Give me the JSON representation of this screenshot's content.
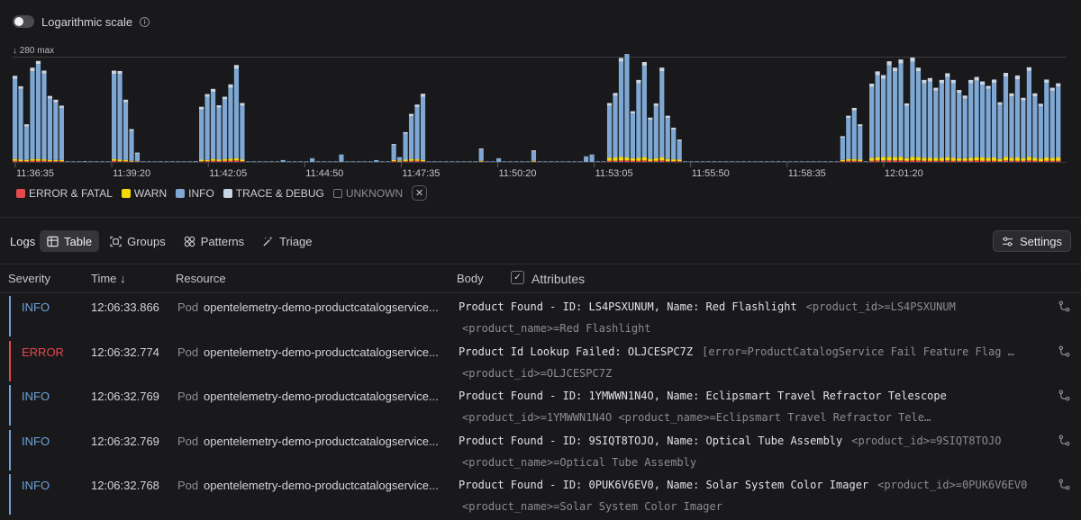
{
  "toolbar": {
    "log_scale_label": "Logarithmic scale"
  },
  "chart_data": {
    "type": "bar",
    "max_label": "280 max",
    "ymax": 280,
    "tick_labels": [
      "11:36:35",
      "11:39:20",
      "11:42:05",
      "11:44:50",
      "11:47:35",
      "11:50:20",
      "11:53:05",
      "11:55:50",
      "11:58:35",
      "12:01:20"
    ],
    "series": [
      {
        "name": "ERROR & FATAL",
        "color": "#e5484d"
      },
      {
        "name": "WARN",
        "color": "#f5d90a"
      },
      {
        "name": "INFO",
        "color": "#7ea8d3"
      },
      {
        "name": "TRACE & DEBUG",
        "color": "#c9d5e3"
      },
      {
        "name": "UNKNOWN",
        "color": "#77777d"
      }
    ],
    "info": [
      215,
      190,
      90,
      235,
      255,
      230,
      165,
      155,
      140,
      0,
      0,
      0,
      2,
      0,
      0,
      0,
      0,
      228,
      230,
      155,
      80,
      20,
      0,
      0,
      0,
      0,
      0,
      0,
      0,
      0,
      0,
      2,
      135,
      170,
      180,
      140,
      160,
      190,
      240,
      145,
      0,
      0,
      0,
      0,
      0,
      0,
      5,
      0,
      0,
      0,
      0,
      10,
      0,
      0,
      0,
      0,
      20,
      0,
      0,
      0,
      0,
      0,
      5,
      0,
      0,
      40,
      10,
      70,
      115,
      140,
      170,
      0,
      0,
      0,
      0,
      0,
      0,
      0,
      0,
      0,
      30,
      0,
      0,
      10,
      0,
      0,
      0,
      0,
      0,
      25,
      0,
      0,
      0,
      0,
      0,
      0,
      0,
      0,
      15,
      20,
      0,
      0,
      140,
      165,
      255,
      280,
      120,
      200,
      245,
      105,
      140,
      230,
      110,
      80,
      50,
      0,
      0,
      0,
      0,
      0,
      0,
      0,
      0,
      0,
      0,
      0,
      0,
      0,
      0,
      0,
      0,
      0,
      0,
      0,
      0,
      0,
      0,
      0,
      0,
      0,
      0,
      0,
      60,
      110,
      130,
      90,
      0,
      190,
      220,
      210,
      245,
      230,
      250,
      140,
      255,
      230,
      200,
      205,
      180,
      200,
      215,
      200,
      175,
      160,
      200,
      205,
      195,
      185,
      200,
      145,
      215,
      165,
      210,
      155,
      230,
      165,
      140,
      200,
      180,
      190
    ],
    "trace": [
      8,
      7,
      6,
      10,
      8,
      8,
      7,
      7,
      6,
      0,
      0,
      0,
      0,
      0,
      0,
      0,
      0,
      9,
      8,
      7,
      5,
      3,
      0,
      0,
      0,
      0,
      0,
      0,
      0,
      0,
      0,
      0,
      7,
      7,
      8,
      6,
      7,
      9,
      10,
      7,
      0,
      0,
      0,
      0,
      0,
      0,
      0,
      0,
      0,
      0,
      0,
      0,
      0,
      0,
      0,
      0,
      0,
      0,
      0,
      0,
      0,
      0,
      0,
      0,
      0,
      3,
      0,
      4,
      6,
      7,
      8,
      0,
      0,
      0,
      0,
      0,
      0,
      0,
      0,
      0,
      3,
      0,
      0,
      0,
      0,
      0,
      0,
      0,
      0,
      3,
      0,
      0,
      0,
      0,
      0,
      0,
      0,
      0,
      0,
      0,
      0,
      0,
      7,
      8,
      10,
      11,
      6,
      9,
      10,
      6,
      7,
      10,
      6,
      5,
      4,
      0,
      0,
      0,
      0,
      0,
      0,
      0,
      0,
      0,
      0,
      0,
      0,
      0,
      0,
      0,
      0,
      0,
      0,
      0,
      0,
      0,
      0,
      0,
      0,
      0,
      0,
      0,
      4,
      6,
      7,
      5,
      0,
      9,
      10,
      10,
      11,
      10,
      11,
      7,
      11,
      10,
      9,
      9,
      8,
      9,
      10,
      9,
      8,
      8,
      9,
      10,
      9,
      8,
      9,
      7,
      10,
      8,
      10,
      7,
      10,
      8,
      7,
      9,
      8,
      9
    ],
    "warn": [
      5,
      4,
      3,
      5,
      5,
      4,
      3,
      3,
      3,
      0,
      0,
      0,
      0,
      0,
      0,
      0,
      0,
      5,
      4,
      3,
      2,
      1,
      0,
      0,
      0,
      0,
      0,
      0,
      0,
      0,
      0,
      0,
      4,
      3,
      5,
      4,
      5,
      6,
      6,
      4,
      0,
      0,
      0,
      0,
      0,
      0,
      0,
      0,
      0,
      0,
      0,
      0,
      0,
      0,
      0,
      0,
      0,
      0,
      0,
      0,
      0,
      0,
      0,
      0,
      0,
      3,
      2,
      4,
      5,
      4,
      3,
      0,
      0,
      0,
      0,
      0,
      0,
      0,
      0,
      0,
      2,
      0,
      0,
      0,
      0,
      0,
      0,
      0,
      0,
      2,
      0,
      0,
      0,
      0,
      0,
      0,
      0,
      0,
      0,
      0,
      0,
      0,
      8,
      9,
      10,
      8,
      7,
      8,
      9,
      6,
      7,
      9,
      6,
      5,
      4,
      0,
      0,
      0,
      0,
      0,
      0,
      0,
      0,
      0,
      0,
      0,
      0,
      0,
      0,
      0,
      0,
      0,
      0,
      0,
      0,
      0,
      0,
      0,
      0,
      0,
      0,
      0,
      3,
      5,
      5,
      4,
      0,
      8,
      9,
      9,
      10,
      9,
      10,
      7,
      10,
      9,
      8,
      8,
      8,
      8,
      9,
      8,
      7,
      7,
      8,
      9,
      9,
      8,
      9,
      6,
      10,
      8,
      9,
      7,
      10,
      8,
      7,
      9,
      8,
      9
    ],
    "error": [
      3,
      2,
      2,
      3,
      3,
      3,
      2,
      2,
      2,
      0,
      0,
      0,
      0,
      0,
      0,
      0,
      0,
      3,
      2,
      2,
      1,
      1,
      0,
      0,
      0,
      0,
      0,
      0,
      0,
      0,
      0,
      0,
      2,
      2,
      3,
      2,
      3,
      3,
      4,
      2,
      0,
      0,
      0,
      0,
      0,
      0,
      0,
      0,
      0,
      0,
      0,
      0,
      0,
      0,
      0,
      0,
      0,
      0,
      0,
      0,
      0,
      0,
      0,
      0,
      0,
      2,
      1,
      2,
      3,
      3,
      2,
      0,
      0,
      0,
      0,
      0,
      0,
      0,
      0,
      0,
      1,
      0,
      0,
      0,
      0,
      0,
      0,
      0,
      0,
      1,
      0,
      0,
      0,
      0,
      0,
      0,
      0,
      0,
      0,
      0,
      0,
      0,
      3,
      3,
      4,
      4,
      3,
      3,
      4,
      2,
      3,
      4,
      2,
      2,
      2,
      0,
      0,
      0,
      0,
      0,
      0,
      0,
      0,
      0,
      0,
      0,
      0,
      0,
      0,
      0,
      0,
      0,
      0,
      0,
      0,
      0,
      0,
      0,
      0,
      0,
      0,
      0,
      2,
      3,
      3,
      2,
      0,
      3,
      4,
      4,
      4,
      4,
      4,
      3,
      4,
      4,
      3,
      3,
      3,
      3,
      4,
      3,
      3,
      3,
      3,
      4,
      3,
      3,
      3,
      2,
      4,
      3,
      3,
      3,
      4,
      3,
      2,
      3,
      3,
      3
    ]
  },
  "legend": {
    "error": "ERROR & FATAL",
    "warn": "WARN",
    "info": "INFO",
    "trace": "TRACE & DEBUG",
    "unknown": "UNKNOWN"
  },
  "logs": {
    "title": "Logs",
    "tabs": [
      {
        "label": "Table"
      },
      {
        "label": "Groups"
      },
      {
        "label": "Patterns"
      },
      {
        "label": "Triage"
      }
    ],
    "settings_label": "Settings"
  },
  "table": {
    "headers": {
      "severity": "Severity",
      "time": "Time ↓",
      "resource": "Resource",
      "body": "Body",
      "attributes": "Attributes"
    },
    "rows": [
      {
        "severity": "INFO",
        "sev_color": "#6fa3d9",
        "time": "12:06:33.866",
        "resource_type": "Pod",
        "resource_name": "opentelemetry-demo-productcatalogservice...",
        "message": "Product Found - ID: LS4PSXUNUM, Name: Red Flashlight",
        "attrs_inline": "<product_id>=LS4PSXUNUM",
        "attrs_line2": "<product_name>=Red Flashlight"
      },
      {
        "severity": "ERROR",
        "sev_color": "#e5484d",
        "time": "12:06:32.774",
        "resource_type": "Pod",
        "resource_name": "opentelemetry-demo-productcatalogservice...",
        "message": "Product Id Lookup Failed: OLJCESPC7Z",
        "attrs_inline": "[error=ProductCatalogService Fail Feature Flag …",
        "attrs_line2": "<product_id>=OLJCESPC7Z"
      },
      {
        "severity": "INFO",
        "sev_color": "#6fa3d9",
        "time": "12:06:32.769",
        "resource_type": "Pod",
        "resource_name": "opentelemetry-demo-productcatalogservice...",
        "message": "Product Found - ID: 1YMWWN1N4O, Name: Eclipsmart Travel Refractor Telescope",
        "attrs_inline": "",
        "attrs_line2": "<product_id>=1YMWWN1N4O <product_name>=Eclipsmart Travel Refractor Tele…"
      },
      {
        "severity": "INFO",
        "sev_color": "#6fa3d9",
        "time": "12:06:32.769",
        "resource_type": "Pod",
        "resource_name": "opentelemetry-demo-productcatalogservice...",
        "message": "Product Found - ID: 9SIQT8TOJO, Name: Optical Tube Assembly",
        "attrs_inline": "<product_id>=9SIQT8TOJO",
        "attrs_line2": "<product_name>=Optical Tube Assembly"
      },
      {
        "severity": "INFO",
        "sev_color": "#6fa3d9",
        "time": "12:06:32.768",
        "resource_type": "Pod",
        "resource_name": "opentelemetry-demo-productcatalogservice...",
        "message": "Product Found - ID: 0PUK6V6EV0, Name: Solar System Color Imager",
        "attrs_inline": "<product_id>=0PUK6V6EV0",
        "attrs_line2": "<product_name>=Solar System Color Imager"
      }
    ]
  },
  "colors": {
    "background": "#19191b",
    "info": "#7ea8d3",
    "error": "#e5484d",
    "warn": "#f5d90a"
  }
}
